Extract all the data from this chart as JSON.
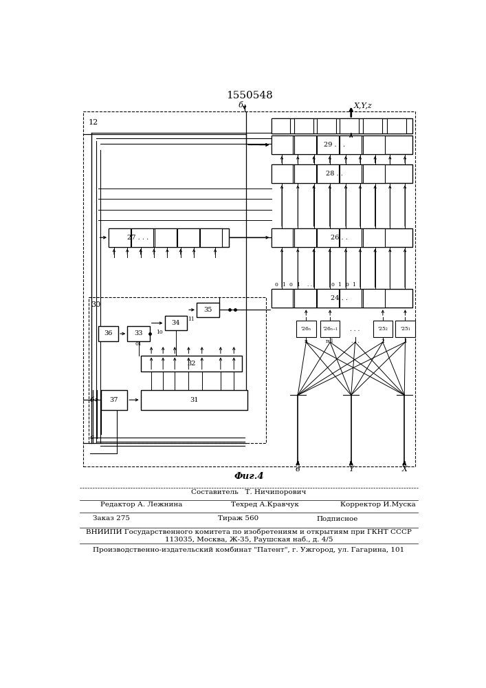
{
  "title": "1550548",
  "fig_label": "Фиг.4",
  "background": "#ffffff",
  "footer": {
    "line1_center": "Составитель   Т. Ничипорович",
    "line2_left": "Редактор А. Лежнина",
    "line2_center": "Техред А.Кравчук",
    "line2_right": "Корректор И.Муска",
    "line3_left": "Заказ 275",
    "line3_center": "Тираж 560",
    "line3_right": "Подписное",
    "line4": "ВНИИПИ Государственного комитета по изобретениям и открытиям при ГКНТ СССР",
    "line5": "113035, Москва, Ж-35, Раушская наб., д. 4/5",
    "line6": "Производственно-издательский комбинат \"Патент\", г. Ужгород, ул. Гагарина, 101"
  }
}
